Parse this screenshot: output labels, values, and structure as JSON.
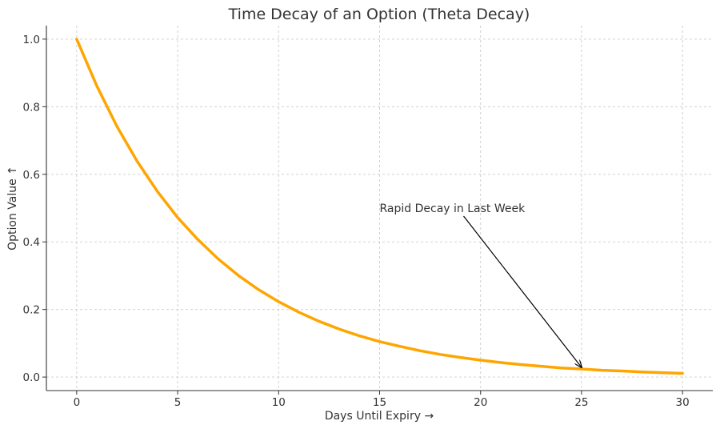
{
  "chart_data": {
    "type": "line",
    "title": "Time Decay of an Option (Theta Decay)",
    "xlabel": "Days Until Expiry →",
    "ylabel": "Option Value ↑",
    "xlim": [
      -1.5,
      31.5
    ],
    "ylim": [
      -0.04,
      1.04
    ],
    "xticks": [
      0,
      5,
      10,
      15,
      20,
      25,
      30
    ],
    "xtick_labels": [
      "0",
      "5",
      "10",
      "15",
      "20",
      "25",
      "30"
    ],
    "yticks": [
      0.0,
      0.2,
      0.4,
      0.6,
      0.8,
      1.0
    ],
    "ytick_labels": [
      "0.0",
      "0.2",
      "0.4",
      "0.6",
      "0.8",
      "1.0"
    ],
    "grid": true,
    "series": [
      {
        "color": "#FFA500",
        "x": [
          0,
          1,
          2,
          3,
          4,
          5,
          6,
          7,
          8,
          9,
          10,
          11,
          12,
          13,
          14,
          15,
          16,
          17,
          18,
          19,
          20,
          21,
          22,
          23,
          24,
          25,
          26,
          27,
          28,
          29,
          30
        ],
        "y": [
          1.0,
          0.861,
          0.741,
          0.638,
          0.549,
          0.472,
          0.407,
          0.35,
          0.301,
          0.259,
          0.223,
          0.192,
          0.165,
          0.142,
          0.122,
          0.105,
          0.091,
          0.078,
          0.067,
          0.058,
          0.05,
          0.043,
          0.037,
          0.032,
          0.027,
          0.024,
          0.02,
          0.018,
          0.015,
          0.013,
          0.011
        ]
      }
    ],
    "annotation": {
      "text": "Rapid Decay in Last Week",
      "text_x": 15,
      "text_y": 0.5,
      "arrow_x": 25,
      "arrow_y": 0.024
    }
  }
}
